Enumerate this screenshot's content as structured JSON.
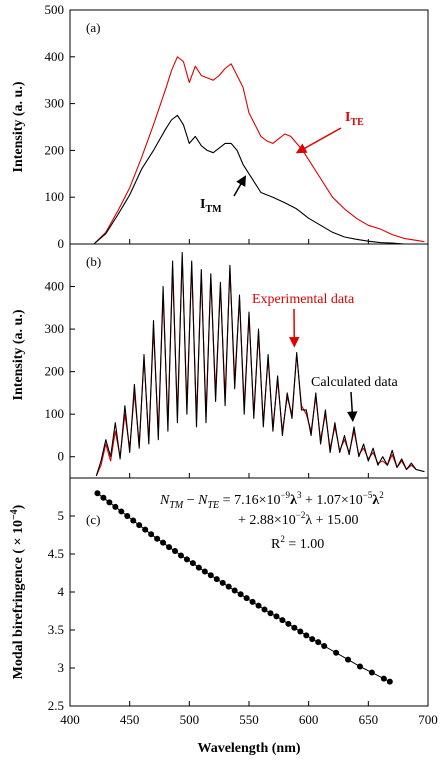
{
  "chart_data": [
    {
      "panel": "(a)",
      "type": "line",
      "ylabel": "Intensity (a. u.)",
      "ylim": [
        0,
        500
      ],
      "yticks": [
        "0",
        "100",
        "200",
        "300",
        "400",
        "500"
      ],
      "xlim": [
        400,
        700
      ],
      "series": [
        {
          "name": "I_TE",
          "color": "#e00000",
          "x": [
            420,
            430,
            440,
            450,
            460,
            470,
            480,
            485,
            490,
            495,
            500,
            505,
            510,
            515,
            520,
            525,
            530,
            535,
            540,
            545,
            550,
            555,
            560,
            565,
            570,
            575,
            580,
            585,
            590,
            595,
            600,
            610,
            620,
            630,
            640,
            650,
            660,
            670,
            680,
            690,
            697
          ],
          "y": [
            0,
            25,
            70,
            120,
            185,
            255,
            330,
            370,
            400,
            390,
            345,
            380,
            360,
            355,
            350,
            360,
            375,
            385,
            360,
            335,
            280,
            255,
            230,
            220,
            215,
            225,
            235,
            230,
            215,
            200,
            180,
            140,
            100,
            75,
            55,
            40,
            32,
            20,
            12,
            8,
            5
          ]
        },
        {
          "name": "I_TM",
          "color": "#000000",
          "x": [
            420,
            430,
            440,
            450,
            460,
            470,
            480,
            485,
            490,
            495,
            500,
            505,
            510,
            515,
            520,
            525,
            530,
            535,
            540,
            545,
            550,
            555,
            560,
            570,
            580,
            590,
            600,
            610,
            620,
            630,
            640,
            650,
            660,
            670,
            680
          ],
          "y": [
            0,
            22,
            62,
            105,
            160,
            200,
            245,
            265,
            275,
            255,
            215,
            230,
            210,
            200,
            195,
            205,
            215,
            215,
            200,
            170,
            150,
            130,
            110,
            100,
            88,
            75,
            55,
            40,
            25,
            15,
            10,
            6,
            3,
            2,
            0
          ]
        }
      ],
      "annotations": [
        {
          "label_main": "I",
          "label_sub": "TE",
          "color": "#e00000",
          "target": [
            590,
            195
          ]
        },
        {
          "label_main": "I",
          "label_sub": "TM",
          "color": "#000000",
          "target": [
            547,
            145
          ]
        }
      ]
    },
    {
      "panel": "(b)",
      "type": "line",
      "ylabel": "Intensity (a. u.)",
      "ylim": [
        -50,
        500
      ],
      "yticks": [
        "0",
        "100",
        "200",
        "300",
        "400"
      ],
      "xlim": [
        400,
        700
      ],
      "series": [
        {
          "name": "Experimental data",
          "color": "#e00000",
          "x": [
            422,
            426,
            430,
            434,
            438,
            442,
            446,
            450,
            454,
            458,
            462,
            466,
            470,
            474,
            478,
            482,
            486,
            490,
            494,
            498,
            502,
            506,
            510,
            514,
            518,
            522,
            526,
            530,
            534,
            538,
            542,
            546,
            550,
            554,
            558,
            562,
            566,
            570,
            574,
            578,
            582,
            586,
            590,
            594,
            598,
            602,
            606,
            610,
            614,
            618,
            622,
            626,
            630,
            634,
            638,
            642,
            646,
            650,
            654,
            658,
            662,
            666,
            670,
            674,
            678,
            682,
            686,
            690,
            697
          ],
          "y": [
            -45,
            -20,
            30,
            -10,
            60,
            0,
            100,
            20,
            150,
            30,
            230,
            40,
            300,
            60,
            380,
            80,
            440,
            100,
            470,
            120,
            450,
            90,
            430,
            100,
            420,
            150,
            400,
            140,
            440,
            180,
            370,
            120,
            330,
            100,
            290,
            80,
            230,
            70,
            180,
            60,
            140,
            100,
            240,
            120,
            100,
            60,
            140,
            40,
            100,
            20,
            70,
            15,
            40,
            10,
            60,
            5,
            20,
            -5,
            10,
            -15,
            -10,
            -20,
            5,
            -25,
            -10,
            -30,
            -20,
            -30,
            -35
          ]
        },
        {
          "name": "Calculated data",
          "color": "#000000",
          "x": [
            422,
            426,
            430,
            434,
            438,
            442,
            446,
            450,
            454,
            458,
            462,
            466,
            470,
            474,
            478,
            482,
            486,
            490,
            494,
            498,
            502,
            506,
            510,
            514,
            518,
            522,
            526,
            530,
            534,
            538,
            542,
            546,
            550,
            554,
            558,
            562,
            566,
            570,
            574,
            578,
            582,
            586,
            590,
            594,
            598,
            602,
            606,
            610,
            614,
            618,
            622,
            626,
            630,
            634,
            638,
            642,
            646,
            650,
            654,
            658,
            662,
            666,
            670,
            674,
            678,
            682,
            686,
            690,
            697
          ],
          "y": [
            -45,
            -10,
            40,
            0,
            80,
            -5,
            120,
            10,
            170,
            20,
            240,
            30,
            320,
            40,
            400,
            60,
            460,
            80,
            480,
            100,
            460,
            70,
            440,
            80,
            430,
            130,
            410,
            120,
            450,
            160,
            380,
            100,
            340,
            90,
            300,
            70,
            240,
            60,
            190,
            50,
            150,
            90,
            245,
            110,
            110,
            50,
            150,
            30,
            110,
            10,
            80,
            10,
            50,
            5,
            70,
            0,
            30,
            -10,
            20,
            -20,
            0,
            -20,
            15,
            -25,
            -5,
            -30,
            -15,
            -30,
            -35
          ]
        }
      ],
      "annotations": [
        {
          "label": "Experimental data",
          "color": "#e00000",
          "target": [
            588,
            245
          ]
        },
        {
          "label": "Calculated data",
          "color": "#000000",
          "target": [
            637,
            70
          ]
        }
      ]
    },
    {
      "panel": "(c)",
      "type": "scatter",
      "xlabel": "Wavelength (nm)",
      "ylabel": "Modal birefringence ( × 10",
      "ylabel_sup": "−4",
      "ylabel_close": ")",
      "xlim": [
        400,
        700
      ],
      "ylim": [
        2.5,
        5.5
      ],
      "xticks": [
        "400",
        "450",
        "500",
        "550",
        "600",
        "650",
        "700"
      ],
      "yticks": [
        "2.5",
        "3",
        "3.5",
        "4",
        "4.5",
        "5"
      ],
      "series": [
        {
          "name": "",
          "color": "#000000",
          "x": [
            423,
            428,
            433,
            438,
            443,
            448,
            453,
            458,
            463,
            468,
            473,
            478,
            483,
            488,
            493,
            498,
            503,
            508,
            513,
            518,
            523,
            528,
            533,
            538,
            543,
            548,
            553,
            558,
            563,
            568,
            573,
            578,
            583,
            588,
            593,
            598,
            603,
            608,
            613,
            623,
            633,
            643,
            653,
            663,
            668
          ],
          "y": [
            5.3,
            5.24,
            5.18,
            5.12,
            5.06,
            5.0,
            4.94,
            4.88,
            4.82,
            4.76,
            4.7,
            4.65,
            4.59,
            4.54,
            4.48,
            4.43,
            4.38,
            4.32,
            4.27,
            4.22,
            4.17,
            4.12,
            4.07,
            4.02,
            3.97,
            3.92,
            3.87,
            3.82,
            3.77,
            3.72,
            3.68,
            3.63,
            3.58,
            3.53,
            3.48,
            3.43,
            3.38,
            3.34,
            3.29,
            3.2,
            3.11,
            3.02,
            2.94,
            2.86,
            2.82
          ]
        }
      ],
      "equation": {
        "lhs_a": "N",
        "lhs_a_sub": "TM",
        "minus": " − ",
        "lhs_b": "N",
        "lhs_b_sub": "TE",
        "eq_sign": " = ",
        "c1": "7.16×10",
        "c1_exp": "−9",
        "lam": "λ",
        "p3": "3",
        "plus": " + ",
        "c2": "1.07×10",
        "c2_exp": "−5",
        "p2": "2",
        "line2": "+ 2.88×10",
        "c3_exp": "−2",
        "line2_tail": "λ + 15.00",
        "r2_a": "R",
        "r2_sup": "2",
        "r2_b": " = 1.00"
      }
    }
  ]
}
